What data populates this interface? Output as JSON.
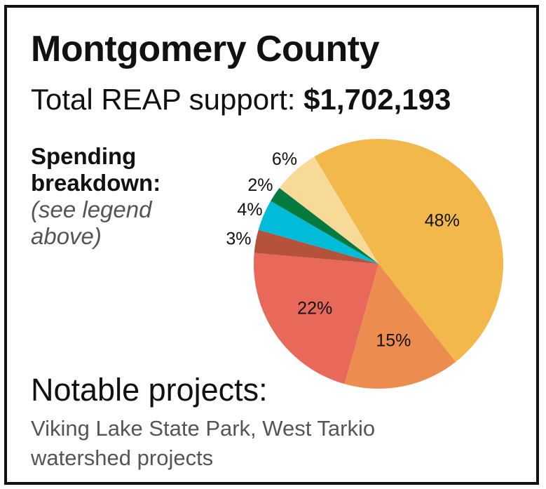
{
  "title": "Montgomery County",
  "support": {
    "label": "Total REAP support: ",
    "amount": "$1,702,193"
  },
  "breakdown": {
    "heading_line1": "Spending",
    "heading_line2": "breakdown:",
    "note_line1": "(see legend",
    "note_line2": "above)"
  },
  "notable": {
    "heading": "Notable projects:",
    "text": "Viking Lake State Park, West Tarkio watershed projects"
  },
  "chart_data": {
    "type": "pie",
    "slices": [
      {
        "label": "48%",
        "value": 48,
        "color": "#F2B84B"
      },
      {
        "label": "15%",
        "value": 15,
        "color": "#EC8C4E"
      },
      {
        "label": "22%",
        "value": 22,
        "color": "#E8685A"
      },
      {
        "label": "3%",
        "value": 3,
        "color": "#B5523B"
      },
      {
        "label": "4%",
        "value": 4,
        "color": "#00BCD8"
      },
      {
        "label": "2%",
        "value": 2,
        "color": "#047A3E"
      },
      {
        "label": "6%",
        "value": 6,
        "color": "#F7D998"
      }
    ]
  }
}
